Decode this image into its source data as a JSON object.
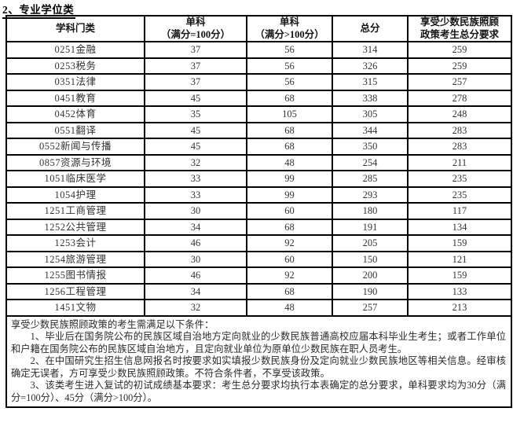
{
  "document": {
    "section_title": "2、专业学位类"
  },
  "table": {
    "columns": {
      "category": "学科门类",
      "single_100_line1": "单科",
      "single_100_line2": "（满分=100分）",
      "single_over100_line1": "单科",
      "single_over100_line2": "（满分>100分）",
      "total": "总分",
      "minority_line1": "享受少数民族照顾",
      "minority_line2": "政策考生总分要求"
    },
    "rows": [
      {
        "category": "0251金融",
        "single_100": "37",
        "single_over100": "56",
        "total": "314",
        "minority_total": "259"
      },
      {
        "category": "0253税务",
        "single_100": "37",
        "single_over100": "56",
        "total": "326",
        "minority_total": "259"
      },
      {
        "category": "0351法律",
        "single_100": "37",
        "single_over100": "56",
        "total": "315",
        "minority_total": "257"
      },
      {
        "category": "0451教育",
        "single_100": "45",
        "single_over100": "68",
        "total": "338",
        "minority_total": "278"
      },
      {
        "category": "0452体育",
        "single_100": "35",
        "single_over100": "105",
        "total": "305",
        "minority_total": "248"
      },
      {
        "category": "0551翻译",
        "single_100": "45",
        "single_over100": "68",
        "total": "344",
        "minority_total": "283"
      },
      {
        "category": "0552新闻与传播",
        "single_100": "45",
        "single_over100": "68",
        "total": "350",
        "minority_total": "283"
      },
      {
        "category": "0857资源与环境",
        "single_100": "32",
        "single_over100": "48",
        "total": "254",
        "minority_total": "211"
      },
      {
        "category": "1051临床医学",
        "single_100": "33",
        "single_over100": "99",
        "total": "285",
        "minority_total": "235"
      },
      {
        "category": "1054护理",
        "single_100": "33",
        "single_over100": "99",
        "total": "293",
        "minority_total": "235"
      },
      {
        "category": "1251工商管理",
        "single_100": "30",
        "single_over100": "60",
        "total": "180",
        "minority_total": "117"
      },
      {
        "category": "1252公共管理",
        "single_100": "34",
        "single_over100": "68",
        "total": "191",
        "minority_total": "134"
      },
      {
        "category": "1253会计",
        "single_100": "46",
        "single_over100": "92",
        "total": "205",
        "minority_total": "159"
      },
      {
        "category": "1254旅游管理",
        "single_100": "30",
        "single_over100": "60",
        "total": "150",
        "minority_total": "121"
      },
      {
        "category": "1255图书情报",
        "single_100": "46",
        "single_over100": "92",
        "total": "200",
        "minority_total": "159"
      },
      {
        "category": "1256工程管理",
        "single_100": "34",
        "single_over100": "68",
        "total": "190",
        "minority_total": "133"
      },
      {
        "category": "1451文物",
        "single_100": "32",
        "single_over100": "48",
        "total": "257",
        "minority_total": "213"
      }
    ]
  },
  "footnote": {
    "intro": "享受少数民族照顾政策的考生需满足以下条件：",
    "items": [
      "1、毕业后在国务院公布的民族区域自治地方定向就业的少数民族普通高校应届本科毕业生考生；或者工作单位和户籍在国务院公布的民族区域自治地方，且定向就业单位为原单位少数民族在职人员考生。",
      "2、在中国研究生招生信息网报名时按要求如实填报少数民族身份及定向就业少数民族地区等相关信息。经审核确定无误者，方可享受少数民族照顾政策。不符合条件者，不享受该政策。",
      "3、该类考生进入复试的初试成绩基本要求：考生总分要求均执行本表确定的总分要求，单科要求均为30分（满分=100分）、45分（满分>100分）。"
    ]
  }
}
